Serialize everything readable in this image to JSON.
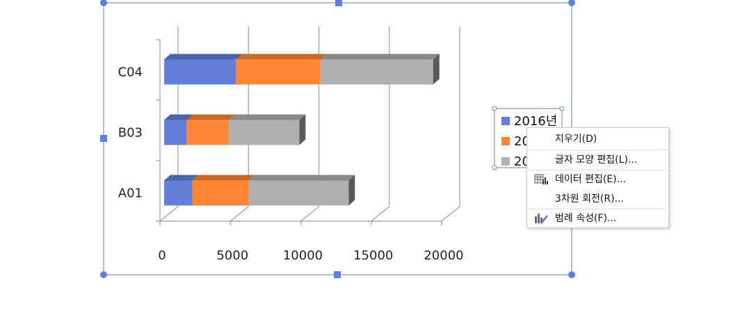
{
  "chart_data": {
    "type": "bar",
    "orientation": "horizontal",
    "stacked": true,
    "three_d": true,
    "categories": [
      "A01",
      "B03",
      "C04"
    ],
    "series": [
      {
        "name": "2016년",
        "color": "#6380d8",
        "values": [
          2000,
          1600,
          5100
        ]
      },
      {
        "name": "2017년",
        "color": "#ff8635",
        "values": [
          4000,
          3000,
          6000
        ]
      },
      {
        "name": "2018년",
        "color": "#b0b0b0",
        "values": [
          7100,
          5000,
          8000
        ]
      }
    ],
    "x_ticks": [
      "0",
      "5000",
      "10000",
      "15000",
      "20000"
    ],
    "xlim": [
      0,
      20000
    ],
    "grid": true,
    "legend": {
      "position": "right",
      "visible_labels": [
        "2016년",
        "20",
        "20"
      ]
    }
  },
  "context_menu": {
    "items": [
      {
        "label": "지우기(D)"
      },
      {
        "label": "글자 모양 편집(L)..."
      },
      {
        "label": "데이터 편집(E)...",
        "icon": "table-data-icon"
      },
      {
        "label": "3차원 회전(R)..."
      },
      {
        "label": "범례 속성(F)...",
        "icon": "chart-properties-icon"
      }
    ]
  },
  "colors": {
    "selection_handle": "#5b80d6",
    "frame": "#6f7f9f",
    "grid": "#9b9b9b"
  }
}
